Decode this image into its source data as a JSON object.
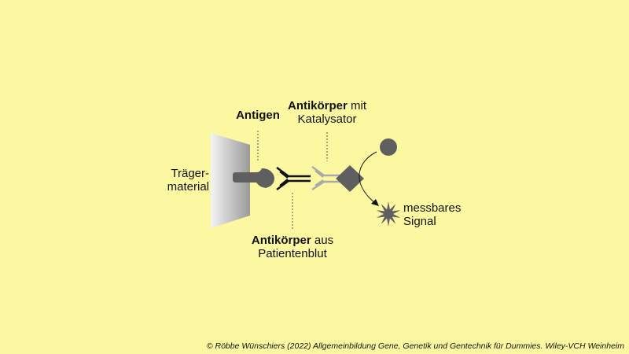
{
  "labels": {
    "traeger_line1": "Träger-",
    "traeger_line2": "material",
    "antigen": "Antigen",
    "ak_kat_bold": "Antikörper",
    "ak_kat_rest": " mit",
    "ak_kat_line2": "Katalysator",
    "ak_pat_bold": "Antikörper",
    "ak_pat_rest": " aus",
    "ak_pat_line2": "Patientenblut",
    "signal_line1": "messbares",
    "signal_line2": "Signal"
  },
  "credit": "© Röbbe Wünschiers (2022) Allgemeinbildung Gene, Genetik und Gentechnik für Dummies. Wiley-VCH Weinheim",
  "colors": {
    "background": "#FCF8A2",
    "antibody_patient": "#111111",
    "antibody_catalyst": "#A9A9A9",
    "shape_gray": "#5F5F5F"
  },
  "icons": [
    "carrier-plate",
    "antigen-shape",
    "patient-antibody",
    "catalyst-antibody",
    "catalyst-diamond",
    "substrate-circle",
    "signal-star"
  ]
}
